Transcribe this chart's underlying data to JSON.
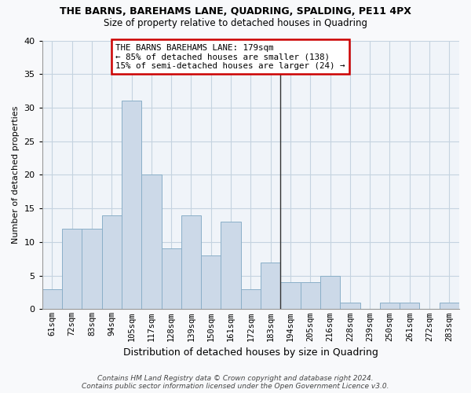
{
  "title": "THE BARNS, BAREHAMS LANE, QUADRING, SPALDING, PE11 4PX",
  "subtitle": "Size of property relative to detached houses in Quadring",
  "xlabel": "Distribution of detached houses by size in Quadring",
  "ylabel": "Number of detached properties",
  "bar_labels": [
    "61sqm",
    "72sqm",
    "83sqm",
    "94sqm",
    "105sqm",
    "117sqm",
    "128sqm",
    "139sqm",
    "150sqm",
    "161sqm",
    "172sqm",
    "183sqm",
    "194sqm",
    "205sqm",
    "216sqm",
    "228sqm",
    "239sqm",
    "250sqm",
    "261sqm",
    "272sqm",
    "283sqm"
  ],
  "bar_values": [
    3,
    12,
    12,
    14,
    31,
    20,
    9,
    14,
    8,
    13,
    3,
    7,
    4,
    4,
    5,
    1,
    0,
    1,
    1,
    0,
    1
  ],
  "bar_color": "#ccd9e8",
  "bar_edge_color": "#8aafc8",
  "vline_x": 11.5,
  "vline_color": "#333333",
  "annotation_text": "THE BARNS BAREHAMS LANE: 179sqm\n← 85% of detached houses are smaller (138)\n15% of semi-detached houses are larger (24) →",
  "annotation_box_color": "white",
  "annotation_box_edge": "#cc0000",
  "ylim": [
    0,
    40
  ],
  "yticks": [
    0,
    5,
    10,
    15,
    20,
    25,
    30,
    35,
    40
  ],
  "footnote": "Contains HM Land Registry data © Crown copyright and database right 2024.\nContains public sector information licensed under the Open Government Licence v3.0.",
  "bg_color": "#f8f9fb",
  "plot_bg_color": "#f0f4f9",
  "grid_color": "#c5d3e0",
  "title_fontsize": 9.0,
  "subtitle_fontsize": 8.5,
  "xlabel_fontsize": 9.0,
  "ylabel_fontsize": 8.0,
  "tick_fontsize": 7.5,
  "footnote_fontsize": 6.5
}
